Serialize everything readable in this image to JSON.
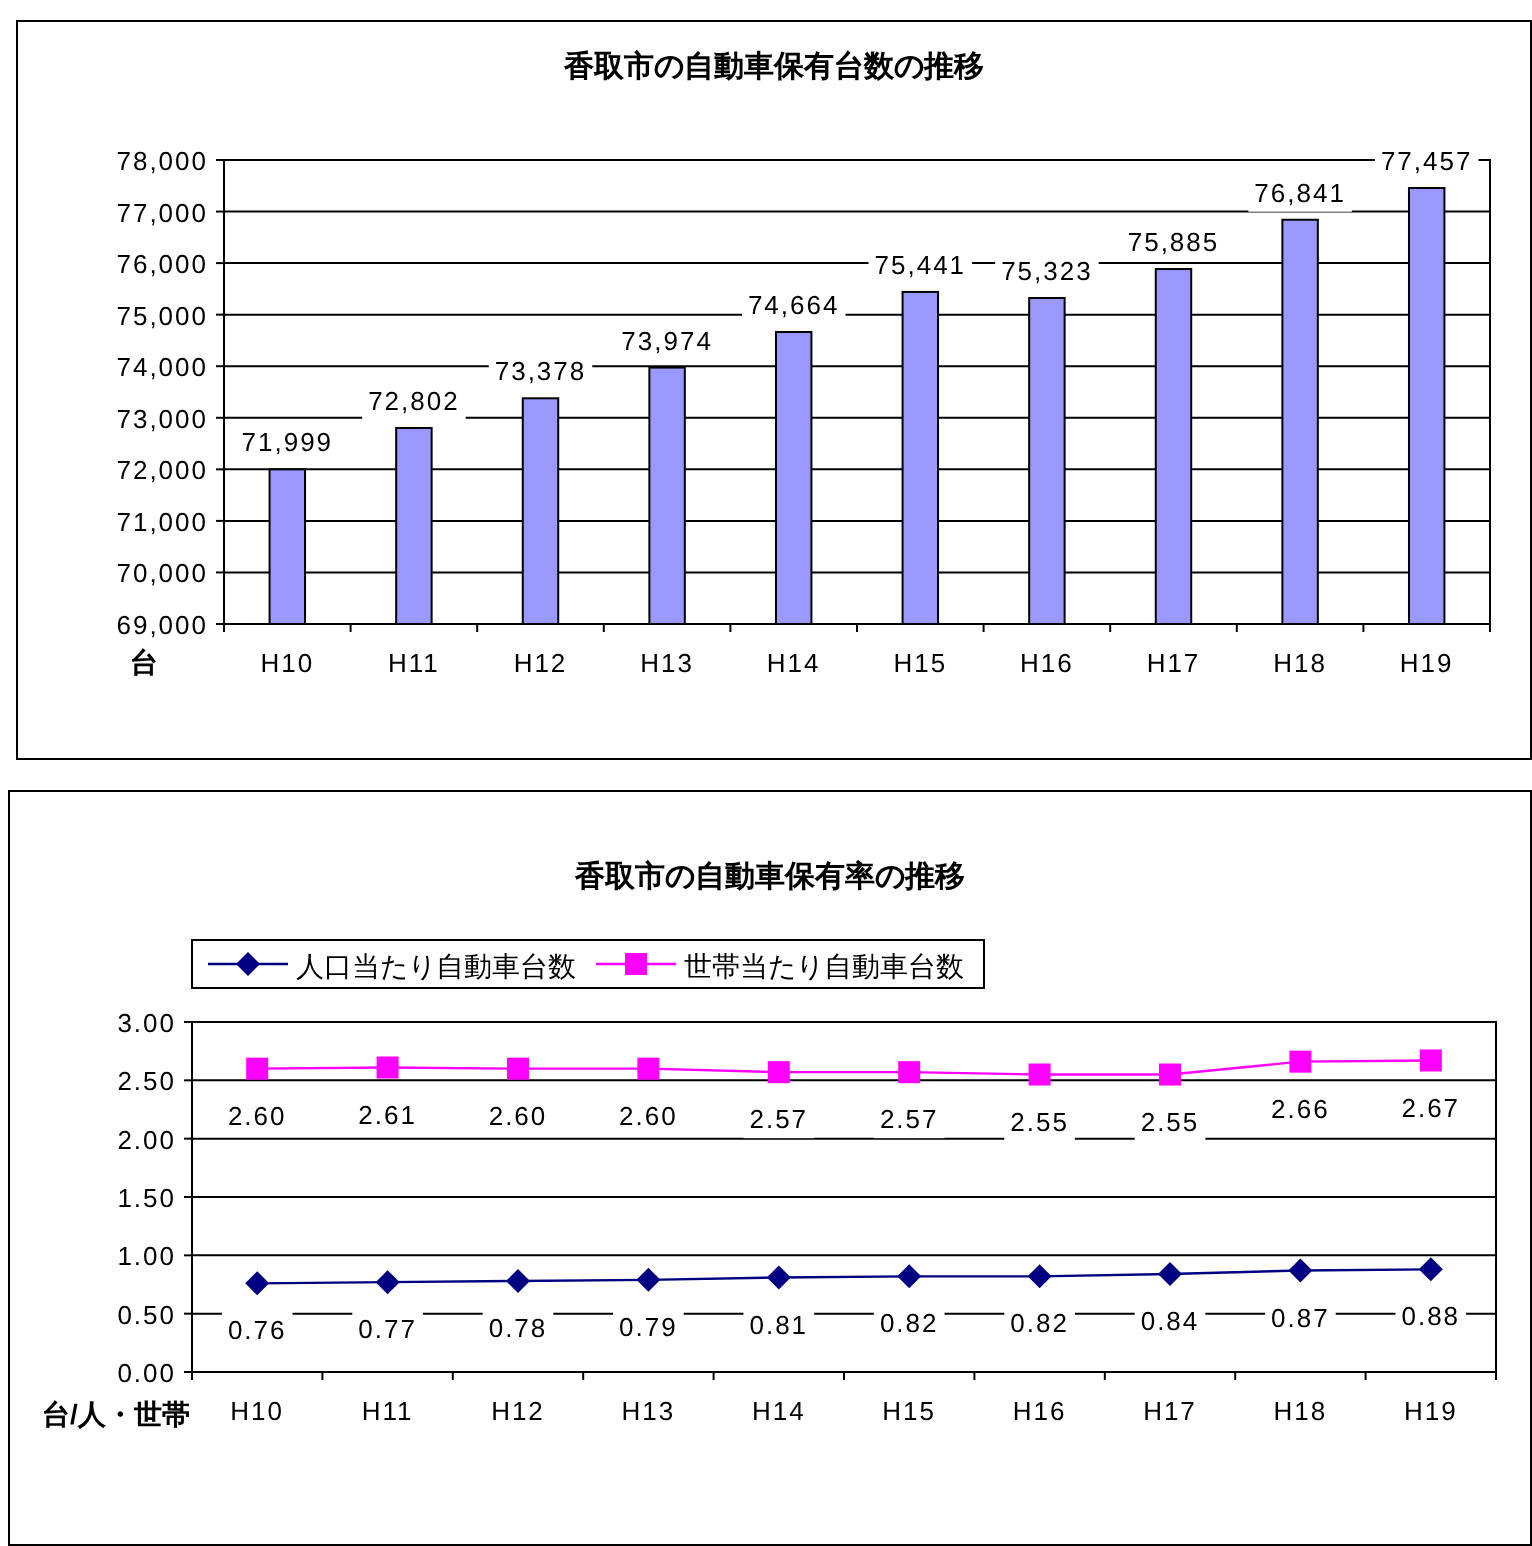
{
  "chart_data": [
    {
      "type": "bar",
      "title": "香取市の自動車保有台数の推移",
      "ylabel": "台",
      "categories": [
        "H10",
        "H11",
        "H12",
        "H13",
        "H14",
        "H15",
        "H16",
        "H17",
        "H18",
        "H19"
      ],
      "values": [
        71999,
        72802,
        73378,
        73974,
        74664,
        75441,
        75323,
        75885,
        76841,
        77457
      ],
      "value_labels": [
        "71,999",
        "72,802",
        "73,378",
        "73,974",
        "74,664",
        "75,441",
        "75,323",
        "75,885",
        "76,841",
        "77,457"
      ],
      "color": "#9999ff",
      "ylim": [
        69000,
        78000
      ],
      "yticks": [
        {
          "value": 69000,
          "label": "69,000"
        },
        {
          "value": 70000,
          "label": "70,000"
        },
        {
          "value": 71000,
          "label": "71,000"
        },
        {
          "value": 72000,
          "label": "72,000"
        },
        {
          "value": 73000,
          "label": "73,000"
        },
        {
          "value": 74000,
          "label": "74,000"
        },
        {
          "value": 75000,
          "label": "75,000"
        },
        {
          "value": 76000,
          "label": "76,000"
        },
        {
          "value": 77000,
          "label": "77,000"
        },
        {
          "value": 78000,
          "label": "78,000"
        }
      ],
      "grid": "y",
      "legend": false
    },
    {
      "type": "line",
      "title": "香取市の自動車保有率の推移",
      "ylabel": "台/人・世帯",
      "categories": [
        "H10",
        "H11",
        "H12",
        "H13",
        "H14",
        "H15",
        "H16",
        "H17",
        "H18",
        "H19"
      ],
      "series": [
        {
          "name": "人口当たり自動車台数",
          "color": "#000080",
          "marker": "diamond",
          "values": [
            0.76,
            0.77,
            0.78,
            0.79,
            0.81,
            0.82,
            0.82,
            0.84,
            0.87,
            0.88
          ],
          "value_labels": [
            "0.76",
            "0.77",
            "0.78",
            "0.79",
            "0.81",
            "0.82",
            "0.82",
            "0.84",
            "0.87",
            "0.88"
          ]
        },
        {
          "name": "世帯当たり自動車台数",
          "color": "#ff00ff",
          "marker": "square",
          "values": [
            2.6,
            2.61,
            2.6,
            2.6,
            2.57,
            2.57,
            2.55,
            2.55,
            2.66,
            2.67
          ],
          "value_labels": [
            "2.60",
            "2.61",
            "2.60",
            "2.60",
            "2.57",
            "2.57",
            "2.55",
            "2.55",
            "2.66",
            "2.67"
          ]
        }
      ],
      "ylim": [
        0,
        3
      ],
      "yticks": [
        {
          "value": 0,
          "label": "0.00"
        },
        {
          "value": 0.5,
          "label": "0.50"
        },
        {
          "value": 1,
          "label": "1.00"
        },
        {
          "value": 1.5,
          "label": "1.50"
        },
        {
          "value": 2,
          "label": "2.00"
        },
        {
          "value": 2.5,
          "label": "2.50"
        },
        {
          "value": 3,
          "label": "3.00"
        }
      ],
      "grid": "y",
      "legend": "top",
      "line_style": "solid"
    }
  ]
}
